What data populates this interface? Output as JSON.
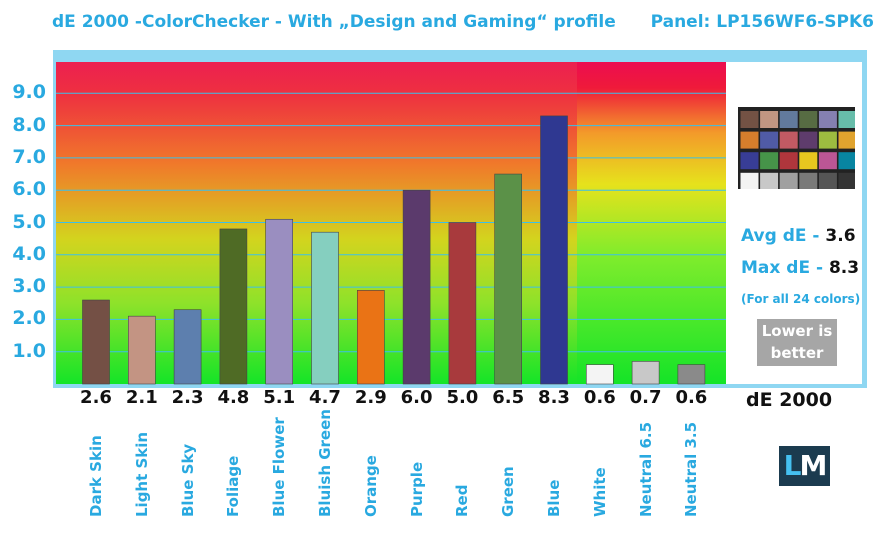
{
  "header": {
    "title": "dE 2000 -ColorChecker - With „Design and Gaming“ profile",
    "panel": "Panel: LP156WF6-SPK6"
  },
  "chart_data": {
    "type": "bar",
    "categories": [
      "Dark Skin",
      "Light Skin",
      "Blue Sky",
      "Foliage",
      "Blue Flower",
      "Bluish Green",
      "Orange",
      "Purple",
      "Red",
      "Green",
      "Blue",
      "White",
      "Neutral 6.5",
      "Neutral 3.5"
    ],
    "values": [
      2.6,
      2.1,
      2.3,
      4.8,
      5.1,
      4.7,
      2.9,
      6.0,
      5.0,
      6.5,
      8.3,
      0.6,
      0.7,
      0.6
    ],
    "value_labels": [
      "2.6",
      "2.1",
      "2.3",
      "4.8",
      "5.1",
      "4.7",
      "2.9",
      "6.0",
      "5.0",
      "6.5",
      "8.3",
      "0.6",
      "0.7",
      "0.6"
    ],
    "bar_colors": [
      "#745045",
      "#c39483",
      "#5d7fae",
      "#4f6b25",
      "#9a8ec0",
      "#85cfbf",
      "#ea7315",
      "#5b3a6c",
      "#a83a3d",
      "#5b9148",
      "#2f3891",
      "#f4f4f4",
      "#c8c8c8",
      "#8a8a8a"
    ],
    "ylim": [
      0,
      10
    ],
    "yticks": [
      "1.0",
      "2.0",
      "3.0",
      "4.0",
      "5.0",
      "6.0",
      "7.0",
      "8.0",
      "9.0"
    ],
    "xlabel": "dE 2000",
    "grid": true
  },
  "legend": {
    "avg_label": "Avg dE - ",
    "avg_value": "3.6",
    "max_label": "Max dE - ",
    "max_value": "8.3",
    "note": "(For all 24 colors)",
    "lower_line1": "Lower is",
    "lower_line2": "better"
  },
  "checker_colors": [
    "#735244",
    "#c29682",
    "#627a9d",
    "#576c43",
    "#8580b1",
    "#67bdaa",
    "#d67e2c",
    "#505ba6",
    "#c15a63",
    "#5e3c6c",
    "#9dbc40",
    "#e0a32e",
    "#383d96",
    "#469449",
    "#af363c",
    "#e7c71f",
    "#bb5695",
    "#0885a1",
    "#f3f3f2",
    "#c8c8c8",
    "#a0a0a0",
    "#7a7a79",
    "#555555",
    "#343434"
  ],
  "logo": {
    "l": "L",
    "m": "M"
  }
}
